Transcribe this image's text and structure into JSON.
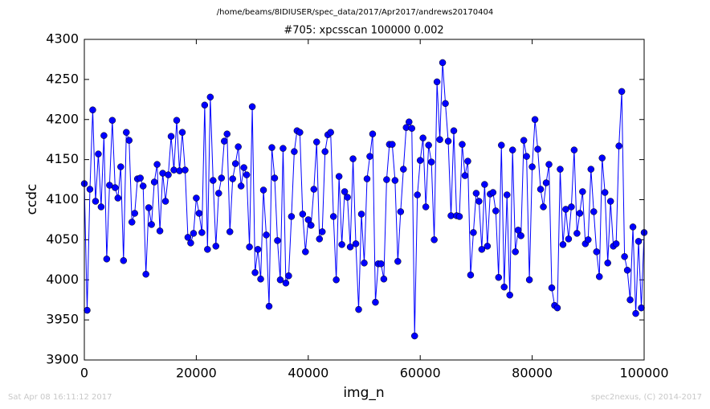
{
  "chart_data": {
    "type": "line",
    "suptitle": "/home/beams/8IDIUSER/spec_data/2017/Apr2017/andrews20170404",
    "title": "#705: xpcsscan 100000 0.002",
    "xlabel": "img_n",
    "ylabel": "ccdc",
    "footer_left": "Sat Apr 08 16:11:12 2017",
    "footer_right": "spec2nexus, (C) 2014-2017",
    "xlim": [
      0,
      100000
    ],
    "xticks": [
      0,
      20000,
      40000,
      60000,
      80000,
      100000
    ],
    "ylim": [
      3900,
      4300
    ],
    "yticks": [
      3900,
      3950,
      4000,
      4050,
      4100,
      4150,
      4200,
      4250,
      4300
    ],
    "x": [
      0,
      500,
      1000,
      1500,
      2000,
      2500,
      3000,
      3500,
      4000,
      4500,
      5000,
      5500,
      6000,
      6500,
      7000,
      7500,
      8000,
      8500,
      9000,
      9500,
      10000,
      10500,
      11000,
      11500,
      12000,
      12500,
      13000,
      13500,
      14000,
      14500,
      15000,
      15500,
      16000,
      16500,
      17000,
      17500,
      18000,
      18500,
      19000,
      19500,
      20000,
      20500,
      21000,
      21500,
      22000,
      22500,
      23000,
      23500,
      24000,
      24500,
      25000,
      25500,
      26000,
      26500,
      27000,
      27500,
      28000,
      28500,
      29000,
      29500,
      30000,
      30500,
      31000,
      31500,
      32000,
      32500,
      33000,
      33500,
      34000,
      34500,
      35000,
      35500,
      36000,
      36500,
      37000,
      37500,
      38000,
      38500,
      39000,
      39500,
      40000,
      40500,
      41000,
      41500,
      42000,
      42500,
      43000,
      43500,
      44000,
      44500,
      45000,
      45500,
      46000,
      46500,
      47000,
      47500,
      48000,
      48500,
      49000,
      49500,
      50000,
      50500,
      51000,
      51500,
      52000,
      52500,
      53000,
      53500,
      54000,
      54500,
      55000,
      55500,
      56000,
      56500,
      57000,
      57500,
      58000,
      58500,
      59000,
      59500,
      60000,
      60500,
      61000,
      61500,
      62000,
      62500,
      63000,
      63500,
      64000,
      64500,
      65000,
      65500,
      66000,
      66500,
      67000,
      67500,
      68000,
      68500,
      69000,
      69500,
      70000,
      70500,
      71000,
      71500,
      72000,
      72500,
      73000,
      73500,
      74000,
      74500,
      75000,
      75500,
      76000,
      76500,
      77000,
      77500,
      78000,
      78500,
      79000,
      79500,
      80000,
      80500,
      81000,
      81500,
      82000,
      82500,
      83000,
      83500,
      84000,
      84500,
      85000,
      85500,
      86000,
      86500,
      87000,
      87500,
      88000,
      88500,
      89000,
      89500,
      90000,
      90500,
      91000,
      91500,
      92000,
      92500,
      93000,
      93500,
      94000,
      94500,
      95000,
      95500,
      96000,
      96500,
      97000,
      97500,
      98000,
      98500,
      99000,
      99500,
      100000
    ],
    "series": [
      {
        "name": "ccdc",
        "color": "#0000ff",
        "values": [
          4120,
          3962,
          4113,
          4212,
          4098,
          4157,
          4091,
          4180,
          4026,
          4118,
          4199,
          4115,
          4102,
          4141,
          4024,
          4184,
          4174,
          4072,
          4083,
          4126,
          4127,
          4117,
          4007,
          4090,
          4069,
          4122,
          4144,
          4061,
          4133,
          4098,
          4131,
          4179,
          4137,
          4199,
          4136,
          4184,
          4137,
          4053,
          4046,
          4058,
          4102,
          4083,
          4059,
          4218,
          4038,
          4228,
          4124,
          4042,
          4108,
          4127,
          4173,
          4182,
          4060,
          4126,
          4145,
          4166,
          4117,
          4140,
          4131,
          4041,
          4216,
          4009,
          4038,
          4001,
          4112,
          4056,
          3967,
          4165,
          4127,
          4049,
          4000,
          4164,
          3996,
          4005,
          4079,
          4160,
          4186,
          4184,
          4082,
          4035,
          4075,
          4068,
          4113,
          4172,
          4051,
          4060,
          4160,
          4181,
          4184,
          4079,
          4000,
          4129,
          4044,
          4110,
          4103,
          4041,
          4151,
          4045,
          3963,
          4082,
          4021,
          4126,
          4154,
          4182,
          3972,
          4020,
          4020,
          4001,
          4125,
          4169,
          4169,
          4124,
          4023,
          4085,
          4138,
          4190,
          4197,
          4189,
          3930,
          4106,
          4149,
          4177,
          4091,
          4168,
          4147,
          4050,
          4247,
          4175,
          4271,
          4220,
          4173,
          4080,
          4186,
          4080,
          4079,
          4169,
          4130,
          4148,
          4006,
          4059,
          4108,
          4098,
          4038,
          4119,
          4042,
          4107,
          4109,
          4086,
          4003,
          4168,
          3991,
          4106,
          3981,
          4162,
          4035,
          4062,
          4055,
          4174,
          4154,
          4000,
          4141,
          4200,
          4163,
          4113,
          4091,
          4121,
          4144,
          3990,
          3968,
          3965,
          4138,
          4044,
          4088,
          4051,
          4091,
          4162,
          4058,
          4083,
          4110,
          4045,
          4050,
          4138,
          4085,
          4035,
          4004,
          4152,
          4109,
          4021,
          4098,
          4042,
          4045,
          4167,
          4235,
          4029,
          4012,
          3975,
          4066,
          3958,
          4048,
          3965,
          4059
        ]
      }
    ]
  }
}
